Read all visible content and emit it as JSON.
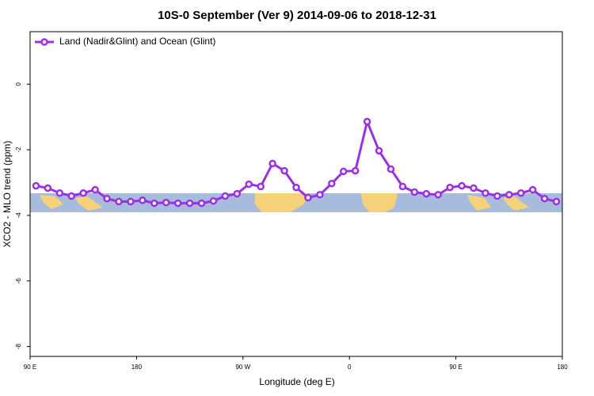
{
  "chart_data": {
    "type": "line",
    "title": "10S-0 September (Ver 9)   2014-09-06 to 2018-12-31",
    "xlabel": "Longitude (deg E)",
    "ylabel": "XCO2 - MLO trend (ppm)",
    "legend": "upper left",
    "xlim": [
      90,
      540
    ],
    "ylim": [
      -8.3,
      1.6
    ],
    "xticks": [
      {
        "value": 90,
        "label": "90 E"
      },
      {
        "value": 180,
        "label": "180"
      },
      {
        "value": 270,
        "label": "90 W"
      },
      {
        "value": 360,
        "label": "0"
      },
      {
        "value": 450,
        "label": "90 E"
      },
      {
        "value": 540,
        "label": "180"
      }
    ],
    "yticks": [
      0,
      -2,
      {
        "value": -4,
        "label": "-4"
      },
      -6,
      -8
    ],
    "x": [
      95,
      105,
      115,
      125,
      135,
      145,
      155,
      165,
      175,
      185,
      195,
      205,
      215,
      225,
      235,
      245,
      255,
      265,
      275,
      285,
      295,
      305,
      315,
      325,
      335,
      345,
      355,
      365,
      375,
      385,
      395,
      405,
      415,
      425,
      435,
      445,
      455,
      465,
      475,
      485,
      495,
      505,
      515,
      525,
      535
    ],
    "series": [
      {
        "name": "Land (Nadir&Glint) and Ocean (Glint)",
        "color": "#9b30e0",
        "values": [
          -3.1,
          -3.17,
          -3.32,
          -3.41,
          -3.32,
          -3.22,
          -3.49,
          -3.58,
          -3.58,
          -3.54,
          -3.63,
          -3.61,
          -3.63,
          -3.63,
          -3.63,
          -3.56,
          -3.41,
          -3.34,
          -3.05,
          -3.12,
          -2.42,
          -2.64,
          -3.15,
          -3.46,
          -3.37,
          -3.03,
          -2.66,
          -2.64,
          -1.14,
          -2.03,
          -2.59,
          -3.12,
          -3.29,
          -3.34,
          -3.37,
          -3.15,
          -3.1,
          -3.17,
          -3.32,
          -3.41,
          -3.37,
          -3.32,
          -3.22,
          -3.49,
          -3.58
        ]
      }
    ]
  }
}
